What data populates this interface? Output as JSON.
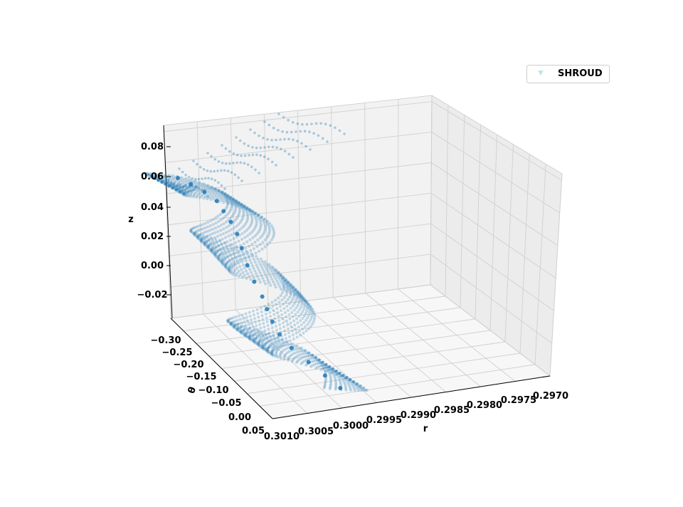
{
  "chart_data": {
    "type": "scatter",
    "projection": "3d",
    "legend": {
      "entries": [
        {
          "label": "SHROUD",
          "marker": "triangle-down",
          "color": "#bfe6e6"
        }
      ],
      "placement": "top-right"
    },
    "axes": {
      "r": {
        "label": "r",
        "ticks": [
          "0.3010",
          "0.3005",
          "0.3000",
          "0.2995",
          "0.2990",
          "0.2985",
          "0.2980",
          "0.2975",
          "0.2970"
        ],
        "range": [
          0.301,
          0.297
        ]
      },
      "theta": {
        "label": "θ",
        "ticks": [
          "−0.30",
          "−0.25",
          "−0.20",
          "−0.15",
          "−0.10",
          "−0.05",
          "0.00",
          "0.05"
        ],
        "range": [
          -0.32,
          0.05
        ]
      },
      "z": {
        "label": "z",
        "ticks": [
          "−0.02",
          "0.00",
          "0.02",
          "0.04",
          "0.06",
          "0.08"
        ],
        "range": [
          -0.035,
          0.09
        ]
      }
    },
    "grid": true,
    "series": [
      {
        "marker_color": "#1f77b4",
        "marker_alpha": 0.25,
        "layers": 12,
        "points_per_layer": 140
      }
    ],
    "surface_trace": {
      "r": [
        0.301,
        0.3009,
        0.3008,
        0.30072,
        0.30065,
        0.3006,
        0.30058,
        0.30062,
        0.30055,
        0.3005,
        0.30048,
        0.30052,
        0.3006,
        0.3007,
        0.30072,
        0.30076,
        0.3008,
        0.30085
      ],
      "theta": [
        -0.055,
        -0.075,
        -0.095,
        -0.11,
        -0.12,
        -0.125,
        -0.14,
        -0.15,
        -0.16,
        -0.175,
        -0.19,
        -0.205,
        -0.215,
        -0.225,
        -0.24,
        -0.255,
        -0.27,
        -0.285
      ],
      "z": [
        -0.028,
        -0.02,
        -0.012,
        -0.004,
        0.004,
        0.012,
        0.018,
        0.024,
        0.03,
        0.036,
        0.042,
        0.048,
        0.054,
        0.06,
        0.066,
        0.072,
        0.078,
        0.085
      ]
    }
  }
}
